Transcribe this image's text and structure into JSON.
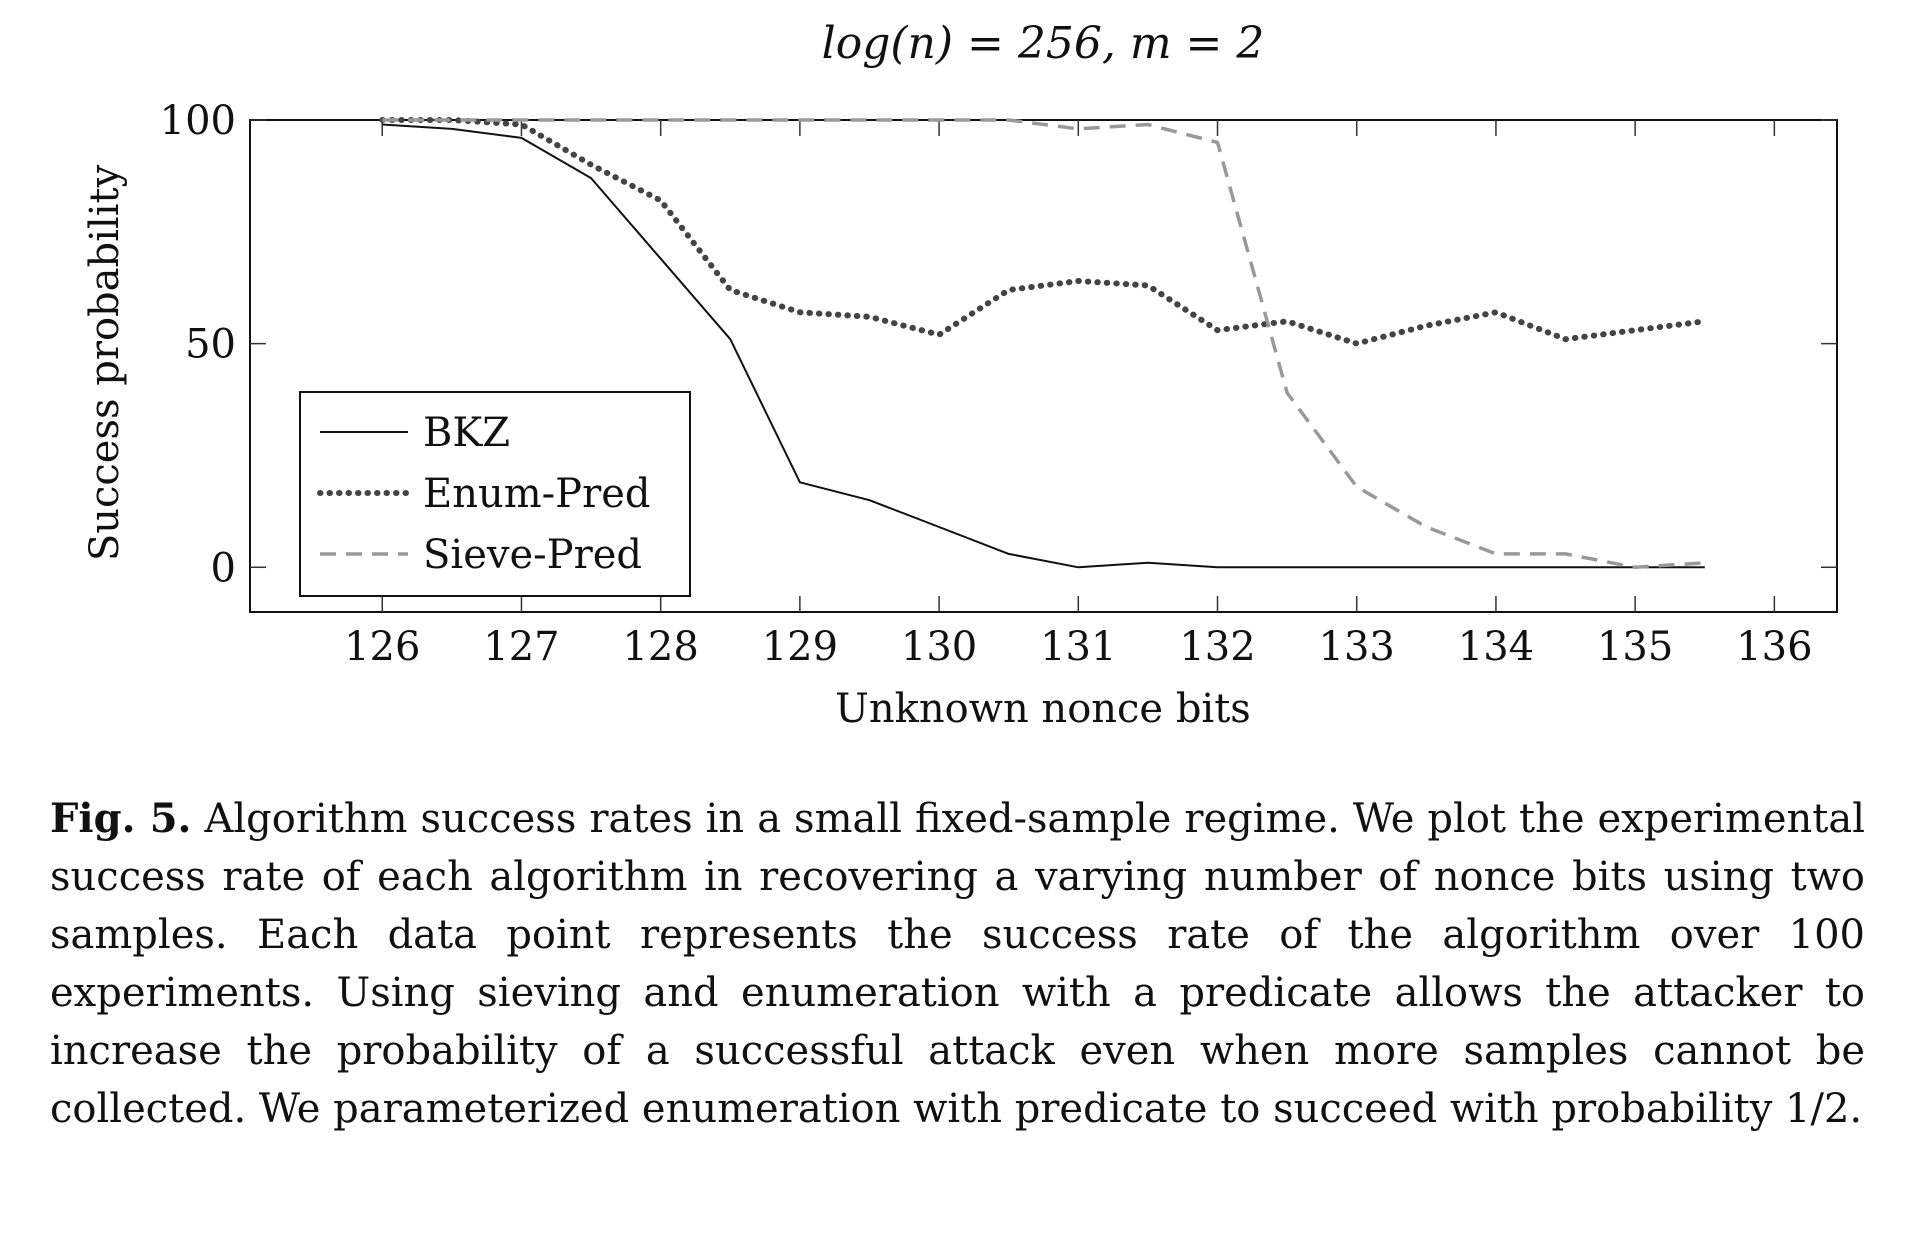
{
  "chart_data": {
    "type": "line",
    "title": "log(n) = 256, m = 2",
    "xlabel": "Unknown nonce bits",
    "ylabel": "Success probability",
    "xlim": [
      125.05,
      136.45
    ],
    "ylim": [
      -10,
      100
    ],
    "xticks": [
      126,
      127,
      128,
      129,
      130,
      131,
      132,
      133,
      134,
      135,
      136
    ],
    "yticks": [
      0,
      50,
      100
    ],
    "grid": false,
    "legend_position": "bottom-left",
    "series": [
      {
        "name": "BKZ",
        "style": "solid",
        "color": "#111111",
        "x": [
          126,
          126.5,
          127,
          127.5,
          128,
          128.5,
          129,
          129.5,
          130,
          130.5,
          131,
          131.5,
          132,
          132.5,
          133,
          133.5,
          134,
          134.5,
          135,
          135.5
        ],
        "y": [
          99,
          98,
          96,
          87,
          69,
          51,
          19,
          15,
          9,
          3,
          0,
          1,
          0,
          0,
          0,
          0,
          0,
          0,
          0,
          0
        ]
      },
      {
        "name": "Enum-Pred",
        "style": "dotted",
        "color": "#444444",
        "x": [
          126,
          126.5,
          127,
          127.5,
          128,
          128.5,
          129,
          129.5,
          130,
          130.5,
          131,
          131.5,
          132,
          132.5,
          133,
          133.5,
          134,
          134.5,
          135,
          135.5
        ],
        "y": [
          100,
          100,
          99,
          90,
          82,
          62,
          57,
          56,
          52,
          62,
          64,
          63,
          53,
          55,
          50,
          54,
          57,
          51,
          53,
          55
        ]
      },
      {
        "name": "Sieve-Pred",
        "style": "dashed",
        "color": "#999999",
        "x": [
          126,
          126.5,
          127,
          127.5,
          128,
          128.5,
          129,
          129.5,
          130,
          130.5,
          131,
          131.5,
          132,
          132.5,
          133,
          133.5,
          134,
          134.5,
          135,
          135.5
        ],
        "y": [
          100,
          100,
          100,
          100,
          100,
          100,
          100,
          100,
          100,
          100,
          98,
          99,
          95,
          39,
          18,
          9,
          3,
          3,
          0,
          1
        ]
      }
    ]
  },
  "caption": {
    "label": "Fig. 5.",
    "text": "Algorithm success rates in a small fixed-sample regime. We plot the experimental success rate of each algorithm in recovering a varying number of nonce bits using two samples. Each data point represents the success rate of the algorithm over 100 experiments. Using sieving and enumeration with a predicate allows the attacker to increase the probability of a successful attack even when more samples cannot be collected. We parameterized enumeration with predicate to succeed with probability 1/2."
  }
}
